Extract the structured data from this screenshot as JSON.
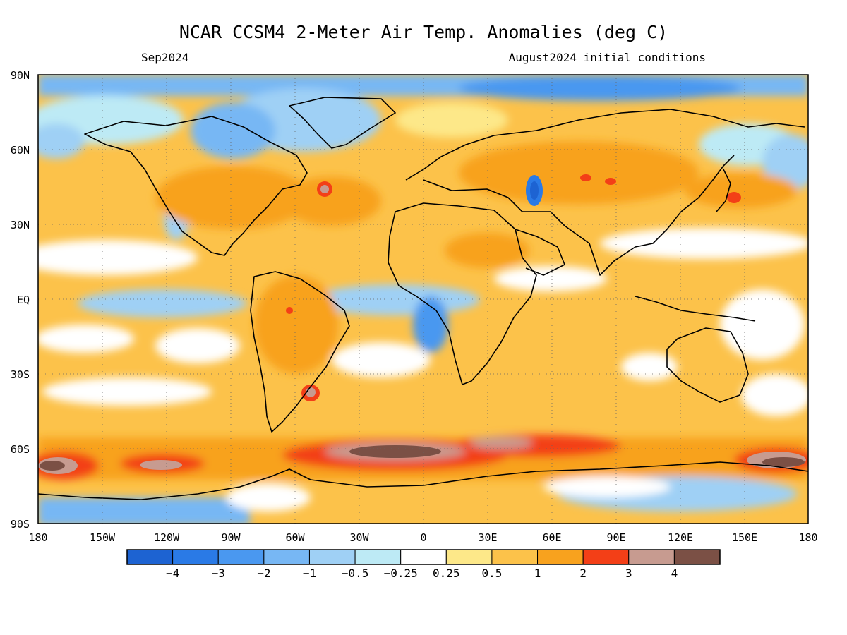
{
  "title": "NCAR_CCSM4 2-Meter Air Temp. Anomalies (deg C)",
  "subtitle_left": "Sep2024",
  "subtitle_right": "August2024 initial conditions",
  "map": {
    "lat_labels": [
      "90N",
      "60N",
      "30N",
      "EQ",
      "30S",
      "60S",
      "90S"
    ],
    "lon_labels": [
      "180",
      "150W",
      "120W",
      "90W",
      "60W",
      "30W",
      "0",
      "30E",
      "60E",
      "90E",
      "120E",
      "150E",
      "180"
    ]
  },
  "colorbar": {
    "colors": [
      "#1d63d2",
      "#2a7ae6",
      "#4a98f0",
      "#77b7f4",
      "#9fd0f5",
      "#bdeaf5",
      "#ffffff",
      "#fde889",
      "#fcc24a",
      "#f8a21e",
      "#f33f17",
      "#c79b90",
      "#7b5045"
    ],
    "labels": [
      "−4",
      "−3",
      "−2",
      "−1",
      "−0.5",
      "−0.25",
      "0.25",
      "0.5",
      "1",
      "2",
      "3",
      "4"
    ]
  },
  "legend_colors": {
    "strong_cold": "#1d63d2",
    "cold": "#77b7f4",
    "slight_cold": "#bdeaf5",
    "neutral": "#ffffff",
    "slight_warm": "#fde889",
    "warm": "#fcc24a",
    "warmer": "#f8a21e",
    "hot": "#f33f17",
    "very_hot": "#c79b90",
    "extreme_hot": "#7b5045"
  }
}
